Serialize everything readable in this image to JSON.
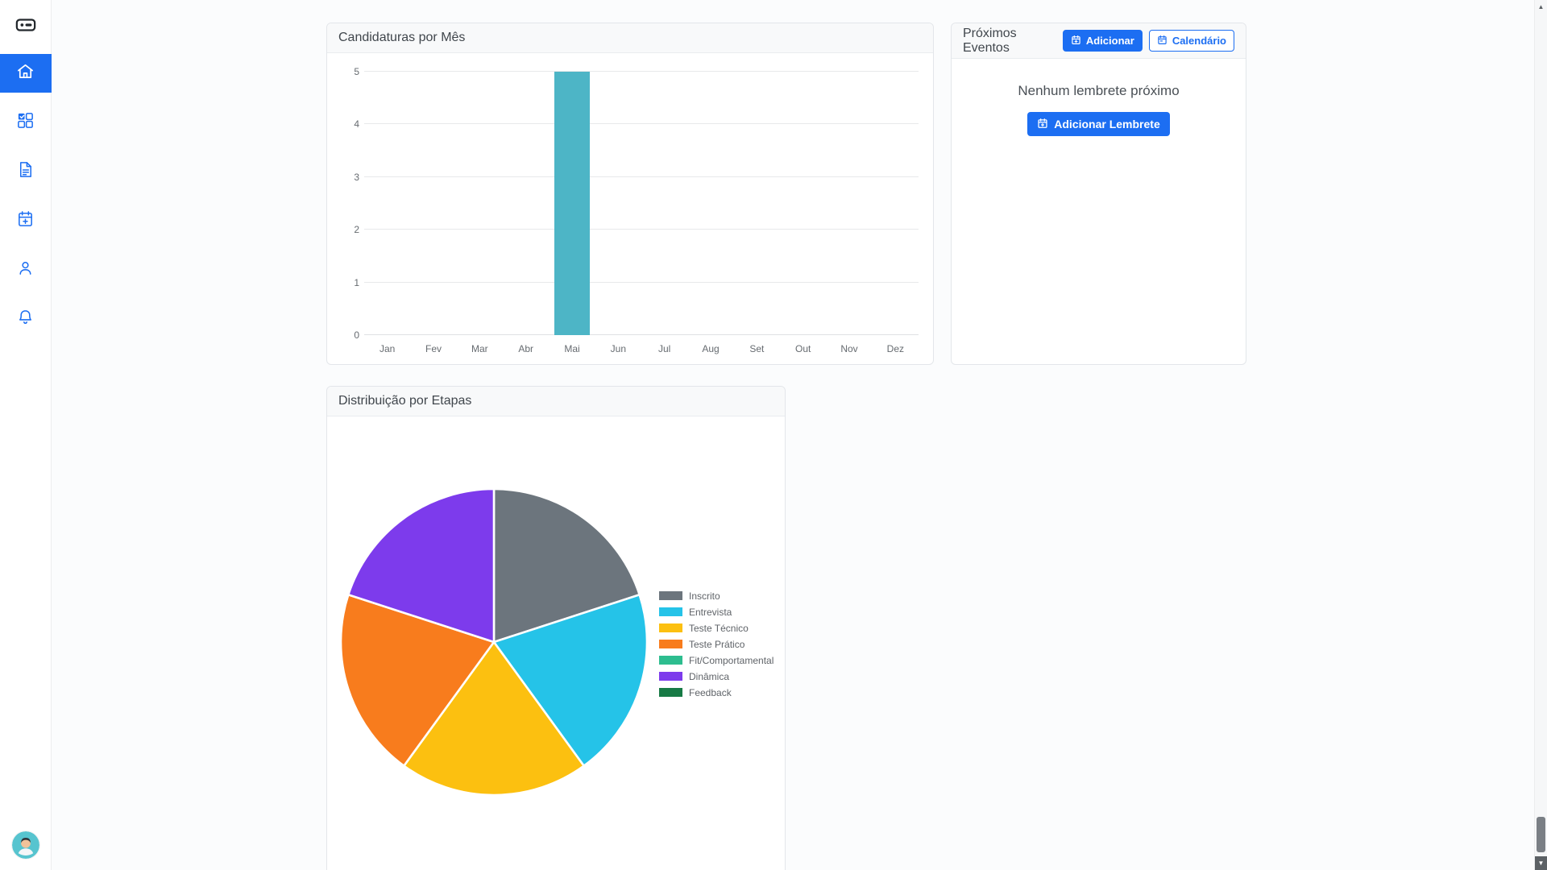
{
  "colors": {
    "accent": "#1c6ef2",
    "bar": "#4db5c6"
  },
  "sidebar": {
    "logo_icon": "app-logo-icon",
    "items": [
      {
        "icon": "home-icon",
        "active": true
      },
      {
        "icon": "grid-check-icon",
        "active": false
      },
      {
        "icon": "document-icon",
        "active": false
      },
      {
        "icon": "calendar-plus-icon",
        "active": false
      },
      {
        "icon": "user-icon",
        "active": false
      },
      {
        "icon": "bell-icon",
        "active": false
      }
    ],
    "avatar_icon": "user-avatar"
  },
  "cards": {
    "applications": {
      "title": "Candidaturas por Mês"
    },
    "events": {
      "title": "Próximos Eventos",
      "buttons": {
        "add": "Adicionar",
        "calendar": "Calendário"
      },
      "empty_message": "Nenhum lembrete próximo",
      "add_reminder": "Adicionar Lembrete"
    },
    "stages": {
      "title": "Distribuição por Etapas"
    }
  },
  "chart_data": [
    {
      "type": "bar",
      "title": "Candidaturas por Mês",
      "categories": [
        "Jan",
        "Fev",
        "Mar",
        "Abr",
        "Mai",
        "Jun",
        "Jul",
        "Aug",
        "Set",
        "Out",
        "Nov",
        "Dez"
      ],
      "values": [
        0,
        0,
        0,
        0,
        5,
        0,
        0,
        0,
        0,
        0,
        0,
        0
      ],
      "xlabel": "",
      "ylabel": "",
      "ylim": [
        0,
        5
      ],
      "yticks": [
        0,
        1,
        2,
        3,
        4,
        5
      ],
      "grid": true,
      "bar_color": "#4db5c6"
    },
    {
      "type": "pie",
      "title": "Distribuição por Etapas",
      "labels": [
        "Inscrito",
        "Entrevista",
        "Teste Técnico",
        "Teste Prático",
        "Fit/Comportamental",
        "Dinâmica",
        "Feedback"
      ],
      "values": [
        1,
        1,
        1,
        1,
        0,
        1,
        0
      ],
      "colors": [
        "#6c757d",
        "#25c3e8",
        "#fcc010",
        "#f87c1d",
        "#2dbd8f",
        "#7d3bec",
        "#177a45"
      ],
      "legend_position": "right",
      "start_angle": 0,
      "clockwise": true
    }
  ]
}
